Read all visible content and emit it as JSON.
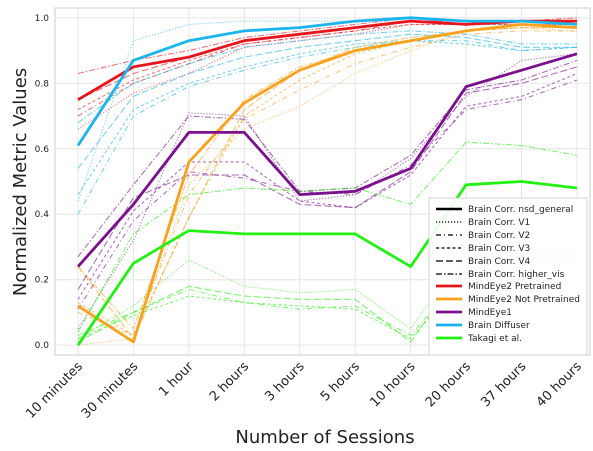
{
  "chart_data": {
    "type": "line",
    "xlabel": "Number of Sessions",
    "ylabel": "Normalized Metric Values",
    "categories": [
      "10 minutes",
      "30 minutes",
      "1 hour",
      "2 hours",
      "3 hours",
      "5 hours",
      "10 hours",
      "20 hours",
      "37 hours",
      "40 hours"
    ],
    "ylim": [
      -0.03,
      1.03
    ],
    "yticks": [
      "0.0",
      "0.2",
      "0.4",
      "0.6",
      "0.8",
      "1.0"
    ],
    "grid": true,
    "legend_position": "lower right",
    "metrics_legend": [
      {
        "label": "Brain Corr. nsd_general",
        "dash": "solid"
      },
      {
        "label": "Brain Corr. V1",
        "dash": "dotted"
      },
      {
        "label": "Brain Corr. V2",
        "dash": "dashdot-sparse"
      },
      {
        "label": "Brain Corr. V3",
        "dash": "dash-short"
      },
      {
        "label": "Brain Corr. V4",
        "dash": "dash-long"
      },
      {
        "label": "Brain Corr. higher_vis",
        "dash": "dashdot"
      }
    ],
    "models_legend": [
      {
        "label": "MindEye2 Pretrained",
        "color": "#e8141c"
      },
      {
        "label": "MindEye2 Not Pretrained",
        "color": "#f9a11b"
      },
      {
        "label": "MindEye1",
        "color": "#7b0f8e"
      },
      {
        "label": "Brain Diffuser",
        "color": "#1ab4ee"
      },
      {
        "label": "Takagi et al.",
        "color": "#22f20f"
      }
    ],
    "series": [
      {
        "name": "MindEye2 Pretrained",
        "color": "#e8141c",
        "metric": "Brain Corr. nsd_general",
        "values": [
          0.75,
          0.85,
          0.88,
          0.93,
          0.95,
          0.97,
          0.99,
          0.98,
          0.99,
          0.99
        ]
      },
      {
        "color": "#e8141c",
        "metric": "Brain Corr. V1",
        "values": [
          0.66,
          0.77,
          0.83,
          0.91,
          0.93,
          0.95,
          0.98,
          0.98,
          0.98,
          0.98
        ]
      },
      {
        "color": "#e8141c",
        "metric": "Brain Corr. V2",
        "values": [
          0.7,
          0.8,
          0.86,
          0.92,
          0.94,
          0.96,
          0.99,
          0.99,
          0.99,
          0.99
        ]
      },
      {
        "color": "#e8141c",
        "metric": "Brain Corr. V3",
        "values": [
          0.72,
          0.81,
          0.87,
          0.92,
          0.94,
          0.96,
          0.98,
          0.98,
          0.98,
          0.98
        ]
      },
      {
        "color": "#e8141c",
        "metric": "Brain Corr. V4",
        "values": [
          0.75,
          0.83,
          0.88,
          0.93,
          0.95,
          0.97,
          0.99,
          0.99,
          0.99,
          0.99
        ]
      },
      {
        "color": "#e8141c",
        "metric": "Brain Corr. higher_vis",
        "values": [
          0.83,
          0.87,
          0.9,
          0.94,
          0.96,
          0.98,
          1.0,
          0.99,
          0.99,
          1.0
        ]
      },
      {
        "name": "MindEye2 Not Pretrained",
        "color": "#f9a11b",
        "metric": "Brain Corr. nsd_general",
        "values": [
          0.12,
          0.01,
          0.56,
          0.74,
          0.84,
          0.9,
          0.93,
          0.96,
          0.98,
          0.97
        ]
      },
      {
        "color": "#f9a11b",
        "metric": "Brain Corr. V1",
        "values": [
          0.0,
          0.02,
          0.49,
          0.66,
          0.73,
          0.83,
          0.9,
          0.96,
          0.97,
          0.96
        ]
      },
      {
        "color": "#f9a11b",
        "metric": "Brain Corr. V2",
        "values": [
          0.1,
          0.03,
          0.46,
          0.69,
          0.78,
          0.86,
          0.91,
          0.95,
          0.96,
          0.96
        ]
      },
      {
        "color": "#f9a11b",
        "metric": "Brain Corr. V3",
        "values": [
          0.13,
          0.03,
          0.39,
          0.7,
          0.81,
          0.89,
          0.93,
          0.96,
          0.97,
          0.97
        ]
      },
      {
        "color": "#f9a11b",
        "metric": "Brain Corr. V4",
        "values": [
          0.24,
          0.02,
          0.39,
          0.72,
          0.84,
          0.91,
          0.94,
          0.96,
          0.97,
          0.97
        ]
      },
      {
        "color": "#f9a11b",
        "metric": "Brain Corr. higher_vis",
        "values": [
          0.24,
          0.05,
          0.52,
          0.75,
          0.85,
          0.9,
          0.93,
          0.96,
          0.98,
          0.97
        ]
      },
      {
        "name": "MindEye1",
        "color": "#7b0f8e",
        "metric": "Brain Corr. nsd_general",
        "values": [
          0.24,
          0.43,
          0.65,
          0.65,
          0.46,
          0.47,
          0.54,
          0.79,
          0.84,
          0.89
        ]
      },
      {
        "color": "#7b0f8e",
        "metric": "Brain Corr. V1",
        "values": [
          0.05,
          0.32,
          0.71,
          0.7,
          0.44,
          0.46,
          0.57,
          0.76,
          0.87,
          0.89
        ]
      },
      {
        "color": "#7b0f8e",
        "metric": "Brain Corr. V2",
        "values": [
          0.11,
          0.38,
          0.53,
          0.51,
          0.47,
          0.46,
          0.55,
          0.72,
          0.75,
          0.81
        ]
      },
      {
        "color": "#7b0f8e",
        "metric": "Brain Corr. V3",
        "values": [
          0.14,
          0.41,
          0.56,
          0.56,
          0.44,
          0.42,
          0.52,
          0.73,
          0.76,
          0.83
        ]
      },
      {
        "color": "#7b0f8e",
        "metric": "Brain Corr. V4",
        "values": [
          0.17,
          0.45,
          0.52,
          0.52,
          0.43,
          0.42,
          0.53,
          0.77,
          0.8,
          0.85
        ]
      },
      {
        "color": "#7b0f8e",
        "metric": "Brain Corr. higher_vis",
        "values": [
          0.27,
          0.49,
          0.7,
          0.69,
          0.47,
          0.48,
          0.58,
          0.78,
          0.81,
          0.87
        ]
      },
      {
        "name": "Brain Diffuser",
        "color": "#1ab4ee",
        "metric": "Brain Corr. nsd_general",
        "values": [
          0.61,
          0.87,
          0.93,
          0.96,
          0.97,
          0.99,
          1.0,
          0.99,
          0.99,
          0.98
        ]
      },
      {
        "color": "#1ab4ee",
        "metric": "Brain Corr. V1",
        "values": [
          0.44,
          0.93,
          0.98,
          0.99,
          0.99,
          0.99,
          0.99,
          0.98,
          0.98,
          0.98
        ]
      },
      {
        "color": "#1ab4ee",
        "metric": "Brain Corr. V2",
        "values": [
          0.4,
          0.7,
          0.79,
          0.84,
          0.88,
          0.91,
          0.93,
          0.93,
          0.9,
          0.91
        ]
      },
      {
        "color": "#1ab4ee",
        "metric": "Brain Corr. V3",
        "values": [
          0.46,
          0.72,
          0.8,
          0.85,
          0.89,
          0.92,
          0.93,
          0.92,
          0.9,
          0.91
        ]
      },
      {
        "color": "#1ab4ee",
        "metric": "Brain Corr. V4",
        "values": [
          0.54,
          0.76,
          0.83,
          0.88,
          0.91,
          0.93,
          0.95,
          0.94,
          0.91,
          0.91
        ]
      },
      {
        "color": "#1ab4ee",
        "metric": "Brain Corr. higher_vis",
        "values": [
          0.68,
          0.8,
          0.86,
          0.91,
          0.93,
          0.95,
          0.96,
          0.95,
          0.92,
          0.92
        ]
      },
      {
        "name": "Takagi et al.",
        "color": "#22f20f",
        "metric": "Brain Corr. nsd_general",
        "values": [
          0.0,
          0.25,
          0.35,
          0.34,
          0.34,
          0.34,
          0.24,
          0.49,
          0.5,
          0.48
        ]
      },
      {
        "color": "#22f20f",
        "metric": "Brain Corr. V1",
        "values": [
          0.02,
          0.12,
          0.26,
          0.18,
          0.16,
          0.17,
          0.05,
          0.29,
          0.33,
          0.31
        ]
      },
      {
        "color": "#22f20f",
        "metric": "Brain Corr. V2",
        "values": [
          0.03,
          0.1,
          0.17,
          0.13,
          0.11,
          0.12,
          0.03,
          0.23,
          0.27,
          0.27
        ]
      },
      {
        "color": "#22f20f",
        "metric": "Brain Corr. V3",
        "values": [
          0.02,
          0.09,
          0.15,
          0.13,
          0.12,
          0.11,
          0.02,
          0.21,
          0.25,
          0.26
        ]
      },
      {
        "color": "#22f20f",
        "metric": "Brain Corr. V4",
        "values": [
          0.01,
          0.1,
          0.18,
          0.15,
          0.14,
          0.14,
          0.01,
          0.25,
          0.28,
          0.28
        ]
      },
      {
        "color": "#22f20f",
        "metric": "Brain Corr. higher_vis",
        "values": [
          0.04,
          0.34,
          0.46,
          0.48,
          0.47,
          0.48,
          0.43,
          0.62,
          0.61,
          0.58
        ]
      }
    ]
  }
}
